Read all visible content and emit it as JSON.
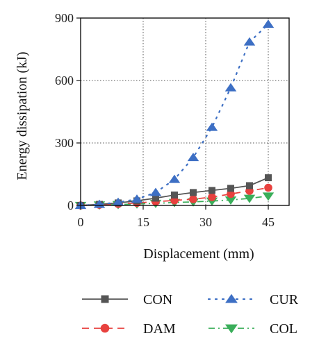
{
  "chart_data": {
    "type": "line",
    "xlabel": "Displacement (mm)",
    "ylabel": "Energy dissipation (kJ)",
    "xlim": [
      0,
      50
    ],
    "ylim": [
      0,
      900
    ],
    "xticks": [
      0,
      15,
      30,
      45
    ],
    "yticks": [
      0,
      300,
      600,
      900
    ],
    "x_tick_labels": [
      "0",
      "15",
      "30",
      "45"
    ],
    "y_tick_labels": [
      "0",
      "300",
      "600",
      "900"
    ],
    "grid": true,
    "legend_position": "bottom",
    "series": [
      {
        "name": "CON",
        "color": "#555555",
        "line": "solid",
        "marker": "square",
        "x": [
          0,
          4.5,
          9,
          13.5,
          18,
          22.5,
          27,
          31.5,
          36,
          40.5,
          45
        ],
        "y": [
          0,
          5,
          12,
          22,
          35,
          50,
          62,
          72,
          82,
          95,
          133
        ]
      },
      {
        "name": "CUR",
        "color": "#3d6fc4",
        "line": "dotted",
        "marker": "triangle-up",
        "x": [
          0,
          4.5,
          9,
          13.5,
          18,
          22.5,
          27,
          31.5,
          36,
          40.5,
          45
        ],
        "y": [
          0,
          5,
          15,
          30,
          62,
          125,
          230,
          375,
          565,
          785,
          870
        ]
      },
      {
        "name": "DAM",
        "color": "#e8413e",
        "line": "dashed",
        "marker": "circle",
        "x": [
          0,
          4.5,
          9,
          13.5,
          18,
          22.5,
          27,
          31.5,
          36,
          40.5,
          45
        ],
        "y": [
          0,
          3,
          7,
          12,
          18,
          24,
          30,
          40,
          55,
          70,
          85
        ]
      },
      {
        "name": "COL",
        "color": "#3aae5a",
        "line": "dashdot",
        "marker": "triangle-down",
        "x": [
          0,
          4.5,
          9,
          13.5,
          18,
          22.5,
          27,
          31.5,
          36,
          40.5,
          45
        ],
        "y": [
          0,
          2,
          4,
          7,
          10,
          14,
          17,
          21,
          26,
          34,
          45
        ]
      }
    ]
  }
}
